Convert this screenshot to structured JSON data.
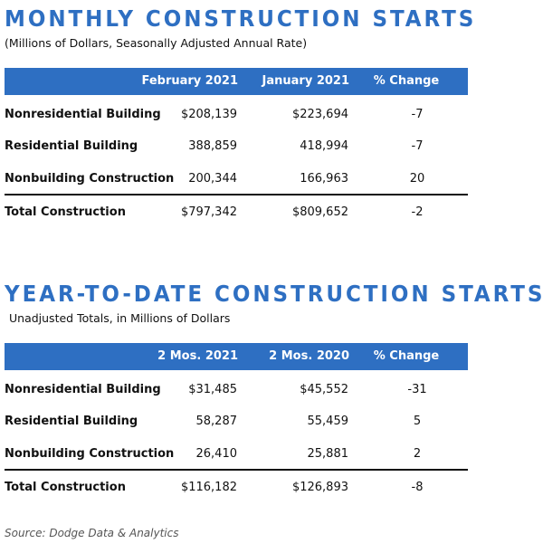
{
  "tables": [
    {
      "title": "MONTHLY CONSTRUCTION STARTS",
      "subtitle": "(Millions of Dollars, Seasonally Adjusted Annual Rate)",
      "header": [
        "February 2021",
        "January 2021",
        "% Change"
      ],
      "rows": [
        [
          "Nonresidential Building",
          "$208,139",
          "$223,694",
          "-7"
        ],
        [
          "Residential Building",
          "388,859",
          "418,994",
          "-7"
        ],
        [
          "Nonbuilding Construction",
          "200,344",
          "166,963",
          "20"
        ],
        [
          "Total Construction",
          "$797,342",
          "$809,652",
          "-2"
        ]
      ]
    },
    {
      "title": "YEAR-TO-DATE CONSTRUCTION STARTS",
      "subtitle": "Unadjusted Totals, in Millions of Dollars",
      "header": [
        "2 Mos. 2021",
        "2 Mos. 2020",
        "% Change"
      ],
      "rows": [
        [
          "Nonresidential Building",
          "$31,485",
          "$45,552",
          "-31"
        ],
        [
          "Residential Building",
          "58,287",
          "55,459",
          "5"
        ],
        [
          "Nonbuilding Construction",
          "26,410",
          "25,881",
          "2"
        ],
        [
          "Total Construction",
          "$116,182",
          "$126,893",
          "-8"
        ]
      ]
    }
  ],
  "source": "Source: Dodge Data & Analytics"
}
